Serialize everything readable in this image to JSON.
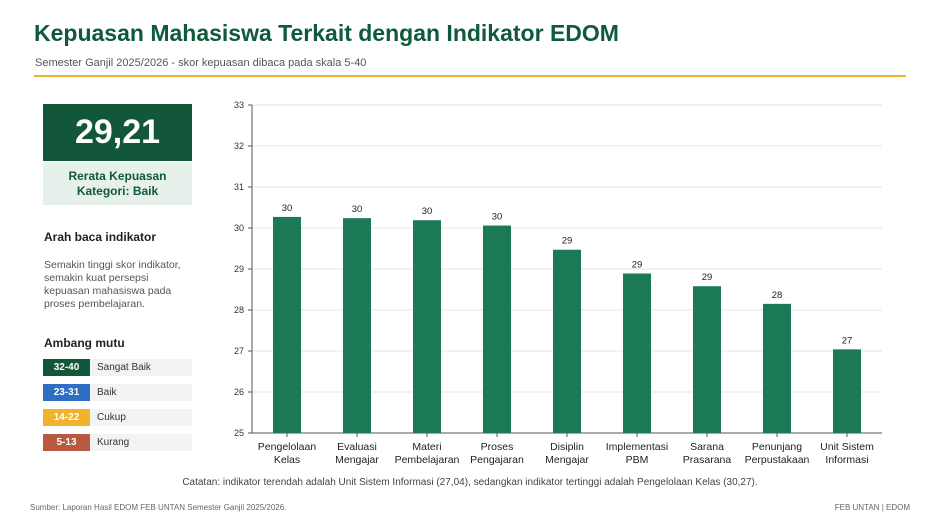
{
  "header": {
    "title": "Kepuasan Mahasiswa Terkait dengan Indikator EDOM",
    "subtitle": "Semester Ganjil 2025/2026 - skor kepuasan dibaca pada skala 5-40"
  },
  "kpi": {
    "value": "29,21",
    "label_line1": "Rerata Kepuasan",
    "label_line2": "Kategori: Baik"
  },
  "guide": {
    "heading": "Arah baca indikator",
    "text": "Semakin tinggi skor indikator, semakin kuat persepsi kepuasan mahasiswa pada proses pembelajaran."
  },
  "thresholds": {
    "heading": "Ambang mutu",
    "items": [
      {
        "range": "32-40",
        "label": "Sangat Baik",
        "color": "#13573a"
      },
      {
        "range": "23-31",
        "label": "Baik",
        "color": "#2e6fc4"
      },
      {
        "range": "14-22",
        "label": "Cukup",
        "color": "#f2b32c"
      },
      {
        "range": "5-13",
        "label": "Kurang",
        "color": "#b85940"
      }
    ]
  },
  "chart_data": {
    "type": "bar",
    "categories": [
      [
        "Pengelolaan",
        "Kelas"
      ],
      [
        "Evaluasi",
        "Mengajar"
      ],
      [
        "Materi",
        "Pembelajaran"
      ],
      [
        "Proses",
        "Pengajaran"
      ],
      [
        "Disiplin",
        "Mengajar"
      ],
      [
        "Implementasi",
        "PBM"
      ],
      [
        "Sarana",
        "Prasarana"
      ],
      [
        "Penunjang",
        "Perpustakaan"
      ],
      [
        "Unit Sistem",
        "Informasi"
      ]
    ],
    "values": [
      30.27,
      30.24,
      30.19,
      30.06,
      29.47,
      28.89,
      28.58,
      28.15,
      27.04
    ],
    "data_labels": [
      "30",
      "30",
      "30",
      "30",
      "29",
      "29",
      "29",
      "28",
      "27"
    ],
    "ylim": [
      25,
      33
    ],
    "yticks": [
      25,
      26,
      27,
      28,
      29,
      30,
      31,
      32,
      33
    ],
    "grid": true,
    "bar_color": "#1b7a55"
  },
  "footer": {
    "note": "Catatan: indikator terendah adalah Unit Sistem Informasi (27,04), sedangkan indikator tertinggi adalah Pengelolaan Kelas (30,27).",
    "source": "Sumber: Laporan Hasil EDOM FEB UNTAN Semester Ganjil 2025/2026.",
    "brand": "FEB UNTAN | EDOM"
  }
}
